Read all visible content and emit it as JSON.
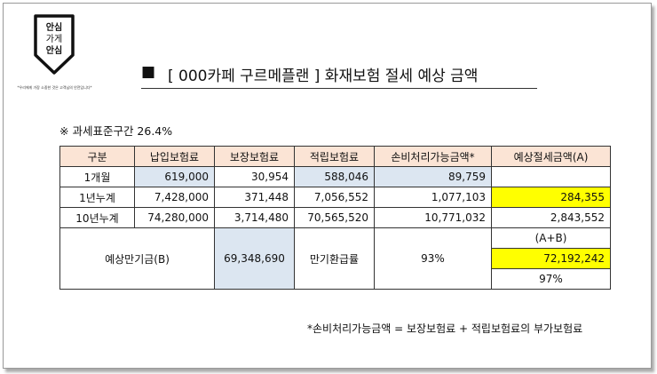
{
  "logo": {
    "line1": "안심",
    "line2": "가게",
    "line3": "안심",
    "slogan": "*우리에게 가장 소중한 것은 고객님의 안전입니다*"
  },
  "title": {
    "bullet": "■",
    "text": "[    000카페 구르메플랜   ]   화재보험 절세 예상 금액"
  },
  "tax_note": "※ 과세표준구간  26.4%",
  "table": {
    "headers": [
      "구분",
      "납입보험료",
      "보장보험료",
      "적립보험료",
      "손비처리가능금액*",
      "예상절세금액(A)"
    ],
    "rows": [
      [
        "1개월",
        "619,000",
        "30,954",
        "588,046",
        "89,759",
        ""
      ],
      [
        "1년누계",
        "7,428,000",
        "371,448",
        "7,056,552",
        "1,077,103",
        "284,355"
      ],
      [
        "10년누계",
        "74,280,000",
        "3,714,480",
        "70,565,520",
        "10,771,032",
        "2,843,552"
      ]
    ],
    "maturity": {
      "label": "예상만기금(B)",
      "value": "69,348,690",
      "refund_label": "만기환급률",
      "refund_rate": "93%",
      "sum_label": "(A+B)",
      "sum_value": "72,192,242",
      "sum_rate": "97%"
    }
  },
  "footnote": "*손비처리가능금액 = 보장보험료 + 적립보험료의 부가보험료",
  "colors": {
    "header_bg": "#fbe4d5",
    "highlight_blue": "#dce6f1",
    "highlight_yellow": "#ffff00"
  }
}
